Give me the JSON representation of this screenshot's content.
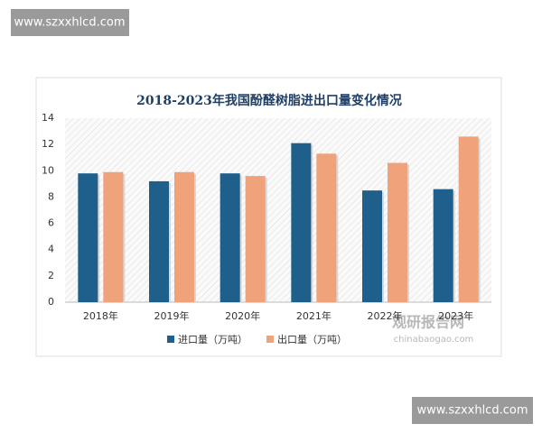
{
  "chart_data": {
    "type": "bar",
    "title": "2018-2023年我国酚醛树脂进出口量变化情况",
    "categories": [
      "2018年",
      "2019年",
      "2020年",
      "2021年",
      "2022年",
      "2023年"
    ],
    "series": [
      {
        "name": "进口量（万吨）",
        "color": "#1f5f8b",
        "values": [
          9.8,
          9.2,
          9.8,
          12.1,
          8.5,
          8.6
        ]
      },
      {
        "name": "出口量（万吨）",
        "color": "#f0a27a",
        "values": [
          9.9,
          9.9,
          9.6,
          11.3,
          10.6,
          12.6
        ]
      }
    ],
    "ylim": [
      0,
      14
    ],
    "yticks": [
      0,
      2,
      4,
      6,
      8,
      10,
      12,
      14
    ],
    "grid": false
  },
  "watermarks": [
    "www.szxxhlcd.com",
    "www.szxxhlcd.com"
  ],
  "logo": {
    "name": "观研报告网",
    "url": "chinabaogao.com"
  }
}
